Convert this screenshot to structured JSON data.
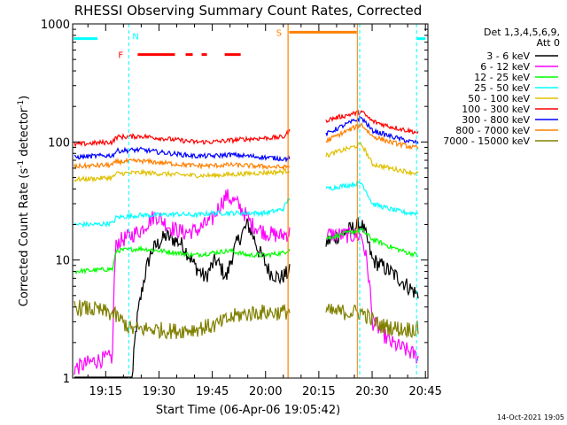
{
  "chart_data": {
    "type": "line",
    "title": "RHESSI Observing Summary Count Rates, Corrected",
    "xlabel": "Start Time (06-Apr-06 19:05:42)",
    "ylabel": "Corrected Count Rate (s",
    "ylabel_sup1": "-1",
    "ylabel_mid": " detector",
    "ylabel_sup2": "-1",
    "ylabel_end": ")",
    "y_scale": "log",
    "ylim": [
      1,
      1000
    ],
    "xlim": [
      "19:05:42",
      "20:45:42"
    ],
    "x_ticks": [
      "19:15",
      "19:30",
      "19:45",
      "20:00",
      "20:15",
      "20:30",
      "20:45"
    ],
    "y_ticks": [
      "1",
      "10",
      "100",
      "1000"
    ],
    "legend_title": [
      "Det 1,3,4,5,6,9,",
      "Att 0"
    ],
    "legend_position": "right",
    "footer": "14-Oct-2021 19:05",
    "markers": [
      {
        "label": "N",
        "color": "#00ffff"
      },
      {
        "label": "F",
        "color": "#ff0000"
      },
      {
        "label": "S",
        "color": "#ff8000"
      }
    ],
    "gaps": [
      [
        "20:07:00",
        "20:17:00"
      ]
    ],
    "series": [
      {
        "name": "3 - 6 keV",
        "color": "#000000",
        "points": [
          [
            "19:06",
            0
          ],
          [
            "19:12",
            0
          ],
          [
            "19:18",
            0
          ],
          [
            "19:22",
            0
          ],
          [
            "19:25",
            5
          ],
          [
            "19:28",
            12
          ],
          [
            "19:32",
            16
          ],
          [
            "19:36",
            14
          ],
          [
            "19:40",
            9
          ],
          [
            "19:43",
            7
          ],
          [
            "19:46",
            10
          ],
          [
            "19:49",
            7
          ],
          [
            "19:52",
            14
          ],
          [
            "19:55",
            20
          ],
          [
            "19:58",
            12
          ],
          [
            "20:01",
            8
          ],
          [
            "20:04",
            7
          ],
          [
            "20:07",
            8
          ],
          [
            "20:27",
            20
          ],
          [
            "20:30",
            10
          ],
          [
            "20:35",
            8
          ],
          [
            "20:40",
            6
          ],
          [
            "20:43",
            5
          ]
        ]
      },
      {
        "name": "6 - 12 keV",
        "color": "#ff00ff",
        "points": [
          [
            "19:06",
            1.2
          ],
          [
            "19:12",
            1.4
          ],
          [
            "19:17",
            1.5
          ],
          [
            "19:18",
            14
          ],
          [
            "19:22",
            16
          ],
          [
            "19:25",
            18
          ],
          [
            "19:29",
            24
          ],
          [
            "19:33",
            19
          ],
          [
            "19:37",
            17
          ],
          [
            "19:41",
            18
          ],
          [
            "19:45",
            22
          ],
          [
            "19:49",
            35
          ],
          [
            "19:52",
            30
          ],
          [
            "19:56",
            20
          ],
          [
            "20:00",
            17
          ],
          [
            "20:04",
            16
          ],
          [
            "20:07",
            17
          ],
          [
            "20:27",
            16
          ],
          [
            "20:30",
            3
          ],
          [
            "20:35",
            2
          ],
          [
            "20:40",
            1.7
          ],
          [
            "20:43",
            1.5
          ]
        ]
      },
      {
        "name": "12 - 25 keV",
        "color": "#00ff00",
        "points": [
          [
            "19:06",
            8
          ],
          [
            "19:12",
            8.2
          ],
          [
            "19:17",
            8.4
          ],
          [
            "19:18",
            12
          ],
          [
            "19:25",
            12.5
          ],
          [
            "19:30",
            12
          ],
          [
            "19:35",
            11.5
          ],
          [
            "19:40",
            11
          ],
          [
            "19:45",
            11.5
          ],
          [
            "19:50",
            12
          ],
          [
            "19:55",
            11
          ],
          [
            "20:00",
            11
          ],
          [
            "20:05",
            11.5
          ],
          [
            "20:07",
            12.5
          ],
          [
            "20:27",
            18
          ],
          [
            "20:30",
            15
          ],
          [
            "20:35",
            13
          ],
          [
            "20:40",
            11.5
          ],
          [
            "20:43",
            11
          ]
        ]
      },
      {
        "name": "25 - 50 keV",
        "color": "#00ffff",
        "points": [
          [
            "19:06",
            20
          ],
          [
            "19:12",
            20
          ],
          [
            "19:17",
            20.5
          ],
          [
            "19:18",
            23
          ],
          [
            "19:25",
            24
          ],
          [
            "19:30",
            24
          ],
          [
            "19:35",
            24.5
          ],
          [
            "19:40",
            24
          ],
          [
            "19:45",
            25
          ],
          [
            "19:50",
            25
          ],
          [
            "19:55",
            25
          ],
          [
            "20:00",
            25
          ],
          [
            "20:05",
            27
          ],
          [
            "20:07",
            35
          ],
          [
            "20:27",
            45
          ],
          [
            "20:30",
            30
          ],
          [
            "20:35",
            27
          ],
          [
            "20:40",
            25
          ],
          [
            "20:43",
            25
          ]
        ]
      },
      {
        "name": "50 - 100 keV",
        "color": "#e0c000",
        "points": [
          [
            "19:06",
            48
          ],
          [
            "19:12",
            49
          ],
          [
            "19:17",
            50
          ],
          [
            "19:18",
            54
          ],
          [
            "19:25",
            55
          ],
          [
            "19:30",
            54
          ],
          [
            "19:35",
            53
          ],
          [
            "19:40",
            52
          ],
          [
            "19:45",
            52
          ],
          [
            "19:50",
            53
          ],
          [
            "19:55",
            54
          ],
          [
            "20:00",
            55
          ],
          [
            "20:05",
            56
          ],
          [
            "20:07",
            58
          ],
          [
            "20:27",
            95
          ],
          [
            "20:30",
            65
          ],
          [
            "20:35",
            60
          ],
          [
            "20:40",
            56
          ],
          [
            "20:43",
            54
          ]
        ]
      },
      {
        "name": "100 - 300 keV",
        "color": "#ff0000",
        "points": [
          [
            "19:06",
            95
          ],
          [
            "19:12",
            98
          ],
          [
            "19:17",
            100
          ],
          [
            "19:18",
            110
          ],
          [
            "19:25",
            112
          ],
          [
            "19:30",
            108
          ],
          [
            "19:35",
            104
          ],
          [
            "19:40",
            100
          ],
          [
            "19:45",
            100
          ],
          [
            "19:50",
            103
          ],
          [
            "19:55",
            106
          ],
          [
            "20:00",
            108
          ],
          [
            "20:05",
            110
          ],
          [
            "20:07",
            125
          ],
          [
            "20:27",
            180
          ],
          [
            "20:30",
            150
          ],
          [
            "20:35",
            135
          ],
          [
            "20:40",
            125
          ],
          [
            "20:43",
            120
          ]
        ]
      },
      {
        "name": "300 - 800 keV",
        "color": "#0000ff",
        "points": [
          [
            "19:06",
            74
          ],
          [
            "19:12",
            76
          ],
          [
            "19:17",
            77
          ],
          [
            "19:18",
            84
          ],
          [
            "19:25",
            86
          ],
          [
            "19:30",
            82
          ],
          [
            "19:35",
            79
          ],
          [
            "19:40",
            76
          ],
          [
            "19:45",
            76
          ],
          [
            "19:50",
            78
          ],
          [
            "19:55",
            76
          ],
          [
            "20:00",
            74
          ],
          [
            "20:05",
            72
          ],
          [
            "20:07",
            72
          ],
          [
            "20:27",
            160
          ],
          [
            "20:30",
            125
          ],
          [
            "20:35",
            112
          ],
          [
            "20:40",
            102
          ],
          [
            "20:43",
            98
          ]
        ]
      },
      {
        "name": "800 - 7000 keV",
        "color": "#ff8000",
        "points": [
          [
            "19:06",
            62
          ],
          [
            "19:12",
            63
          ],
          [
            "19:17",
            64
          ],
          [
            "19:18",
            68
          ],
          [
            "19:25",
            69
          ],
          [
            "19:30",
            67
          ],
          [
            "19:35",
            65
          ],
          [
            "19:40",
            63
          ],
          [
            "19:45",
            63
          ],
          [
            "19:50",
            64
          ],
          [
            "19:55",
            63
          ],
          [
            "20:00",
            62
          ],
          [
            "20:05",
            61
          ],
          [
            "20:07",
            62
          ],
          [
            "20:27",
            140
          ],
          [
            "20:30",
            112
          ],
          [
            "20:35",
            100
          ],
          [
            "20:40",
            92
          ],
          [
            "20:43",
            88
          ]
        ]
      },
      {
        "name": "7000 - 15000 keV",
        "color": "#808000",
        "points": [
          [
            "19:06",
            4
          ],
          [
            "19:12",
            3.8
          ],
          [
            "19:17",
            3.5
          ],
          [
            "19:22",
            2.6
          ],
          [
            "19:28",
            2.6
          ],
          [
            "19:34",
            2.5
          ],
          [
            "19:40",
            2.6
          ],
          [
            "19:46",
            2.8
          ],
          [
            "19:52",
            3.4
          ],
          [
            "19:58",
            3.6
          ],
          [
            "20:04",
            3.6
          ],
          [
            "20:07",
            3.7
          ],
          [
            "20:27",
            3.6
          ],
          [
            "20:32",
            2.8
          ],
          [
            "20:38",
            2.6
          ],
          [
            "20:43",
            2.6
          ]
        ]
      }
    ]
  }
}
